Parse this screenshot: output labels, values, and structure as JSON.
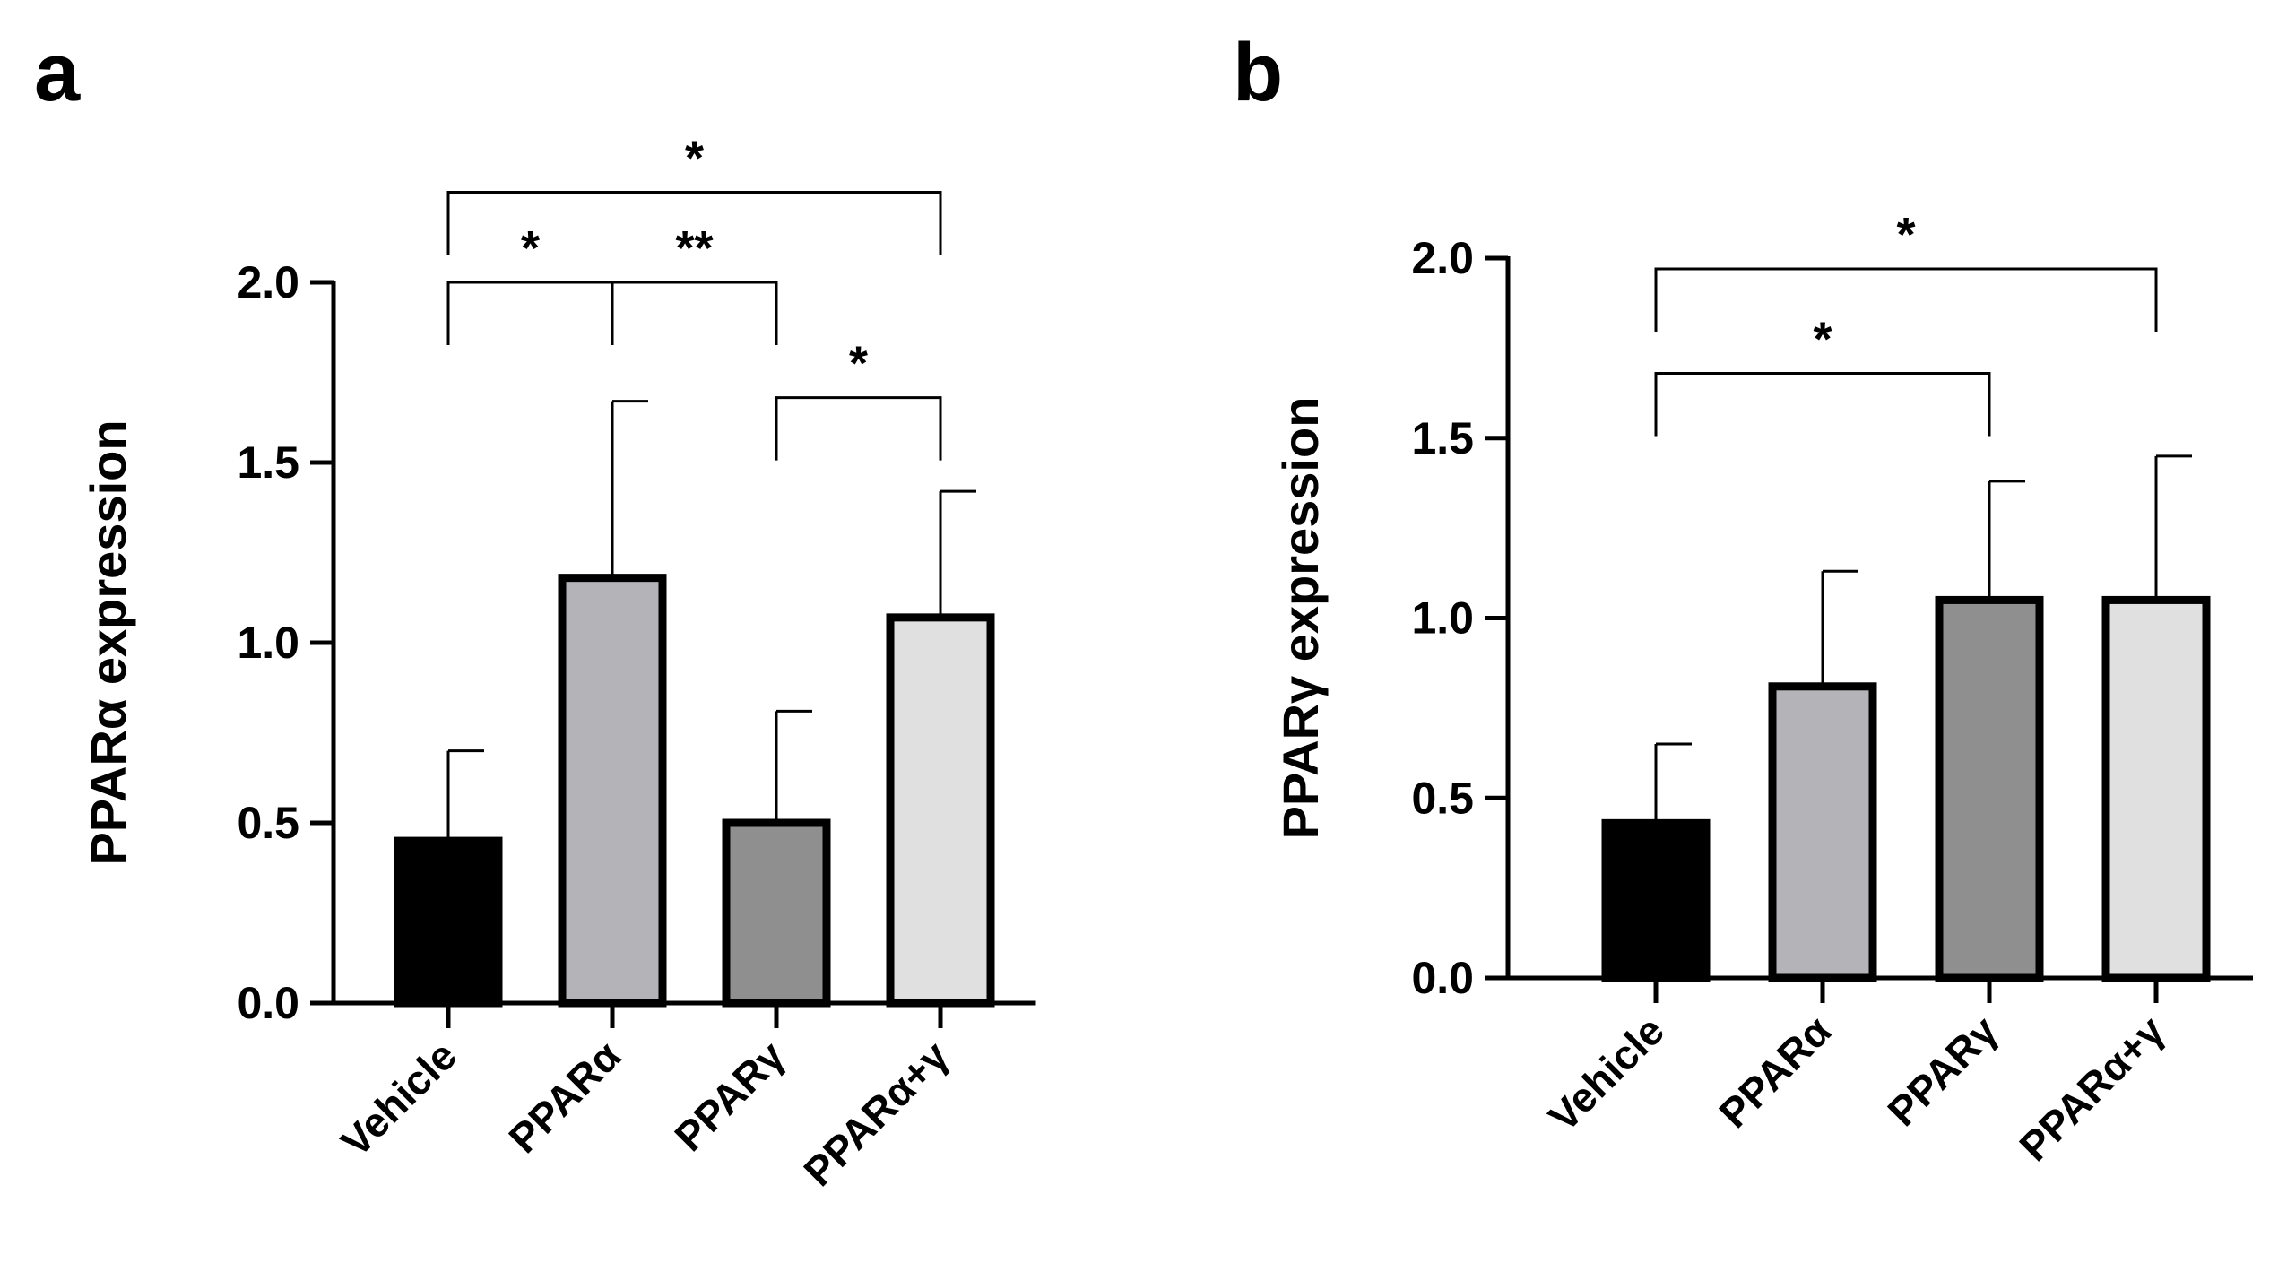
{
  "chart_data": [
    {
      "panel": "a",
      "type": "bar",
      "title": "",
      "xlabel": "",
      "ylabel": "PPARα expression",
      "ylim": [
        0,
        2.0
      ],
      "yticks": [
        0.0,
        0.5,
        1.0,
        1.5,
        2.0
      ],
      "ytick_labels": [
        "0.0",
        "0.5",
        "1.0",
        "1.5",
        "2.0"
      ],
      "categories": [
        "Vehicle",
        "PPARα",
        "PPARγ",
        "PPARα+γ"
      ],
      "values": [
        0.45,
        1.18,
        0.5,
        1.07
      ],
      "errors": [
        0.25,
        0.49,
        0.31,
        0.35
      ],
      "bar_colors": [
        "#000000",
        "#b3b3b8",
        "#8f8f8f",
        "#e0e0e0"
      ],
      "significance": [
        {
          "from": 0,
          "to": 3,
          "label": "*",
          "y": 2.25
        },
        {
          "from": 0,
          "to": 1,
          "label": "*",
          "y": 2.0
        },
        {
          "from": 1,
          "to": 2,
          "label": "**",
          "y": 2.0
        },
        {
          "from": 2,
          "to": 3,
          "label": "*",
          "y": 1.68
        }
      ]
    },
    {
      "panel": "b",
      "type": "bar",
      "title": "",
      "xlabel": "",
      "ylabel": "PPARγ expression",
      "ylim": [
        0,
        2.0
      ],
      "yticks": [
        0.0,
        0.5,
        1.0,
        1.5,
        2.0
      ],
      "ytick_labels": [
        "0.0",
        "0.5",
        "1.0",
        "1.5",
        "2.0"
      ],
      "categories": [
        "Vehicle",
        "PPARα",
        "PPARγ",
        "PPARα+γ"
      ],
      "values": [
        0.43,
        0.81,
        1.05,
        1.05
      ],
      "errors": [
        0.22,
        0.32,
        0.33,
        0.4
      ],
      "bar_colors": [
        "#000000",
        "#b3b3b8",
        "#8f8f8f",
        "#e0e0e0"
      ],
      "significance": [
        {
          "from": 0,
          "to": 3,
          "label": "*",
          "y": 1.97
        },
        {
          "from": 0,
          "to": 2,
          "label": "*",
          "y": 1.68
        }
      ]
    }
  ]
}
